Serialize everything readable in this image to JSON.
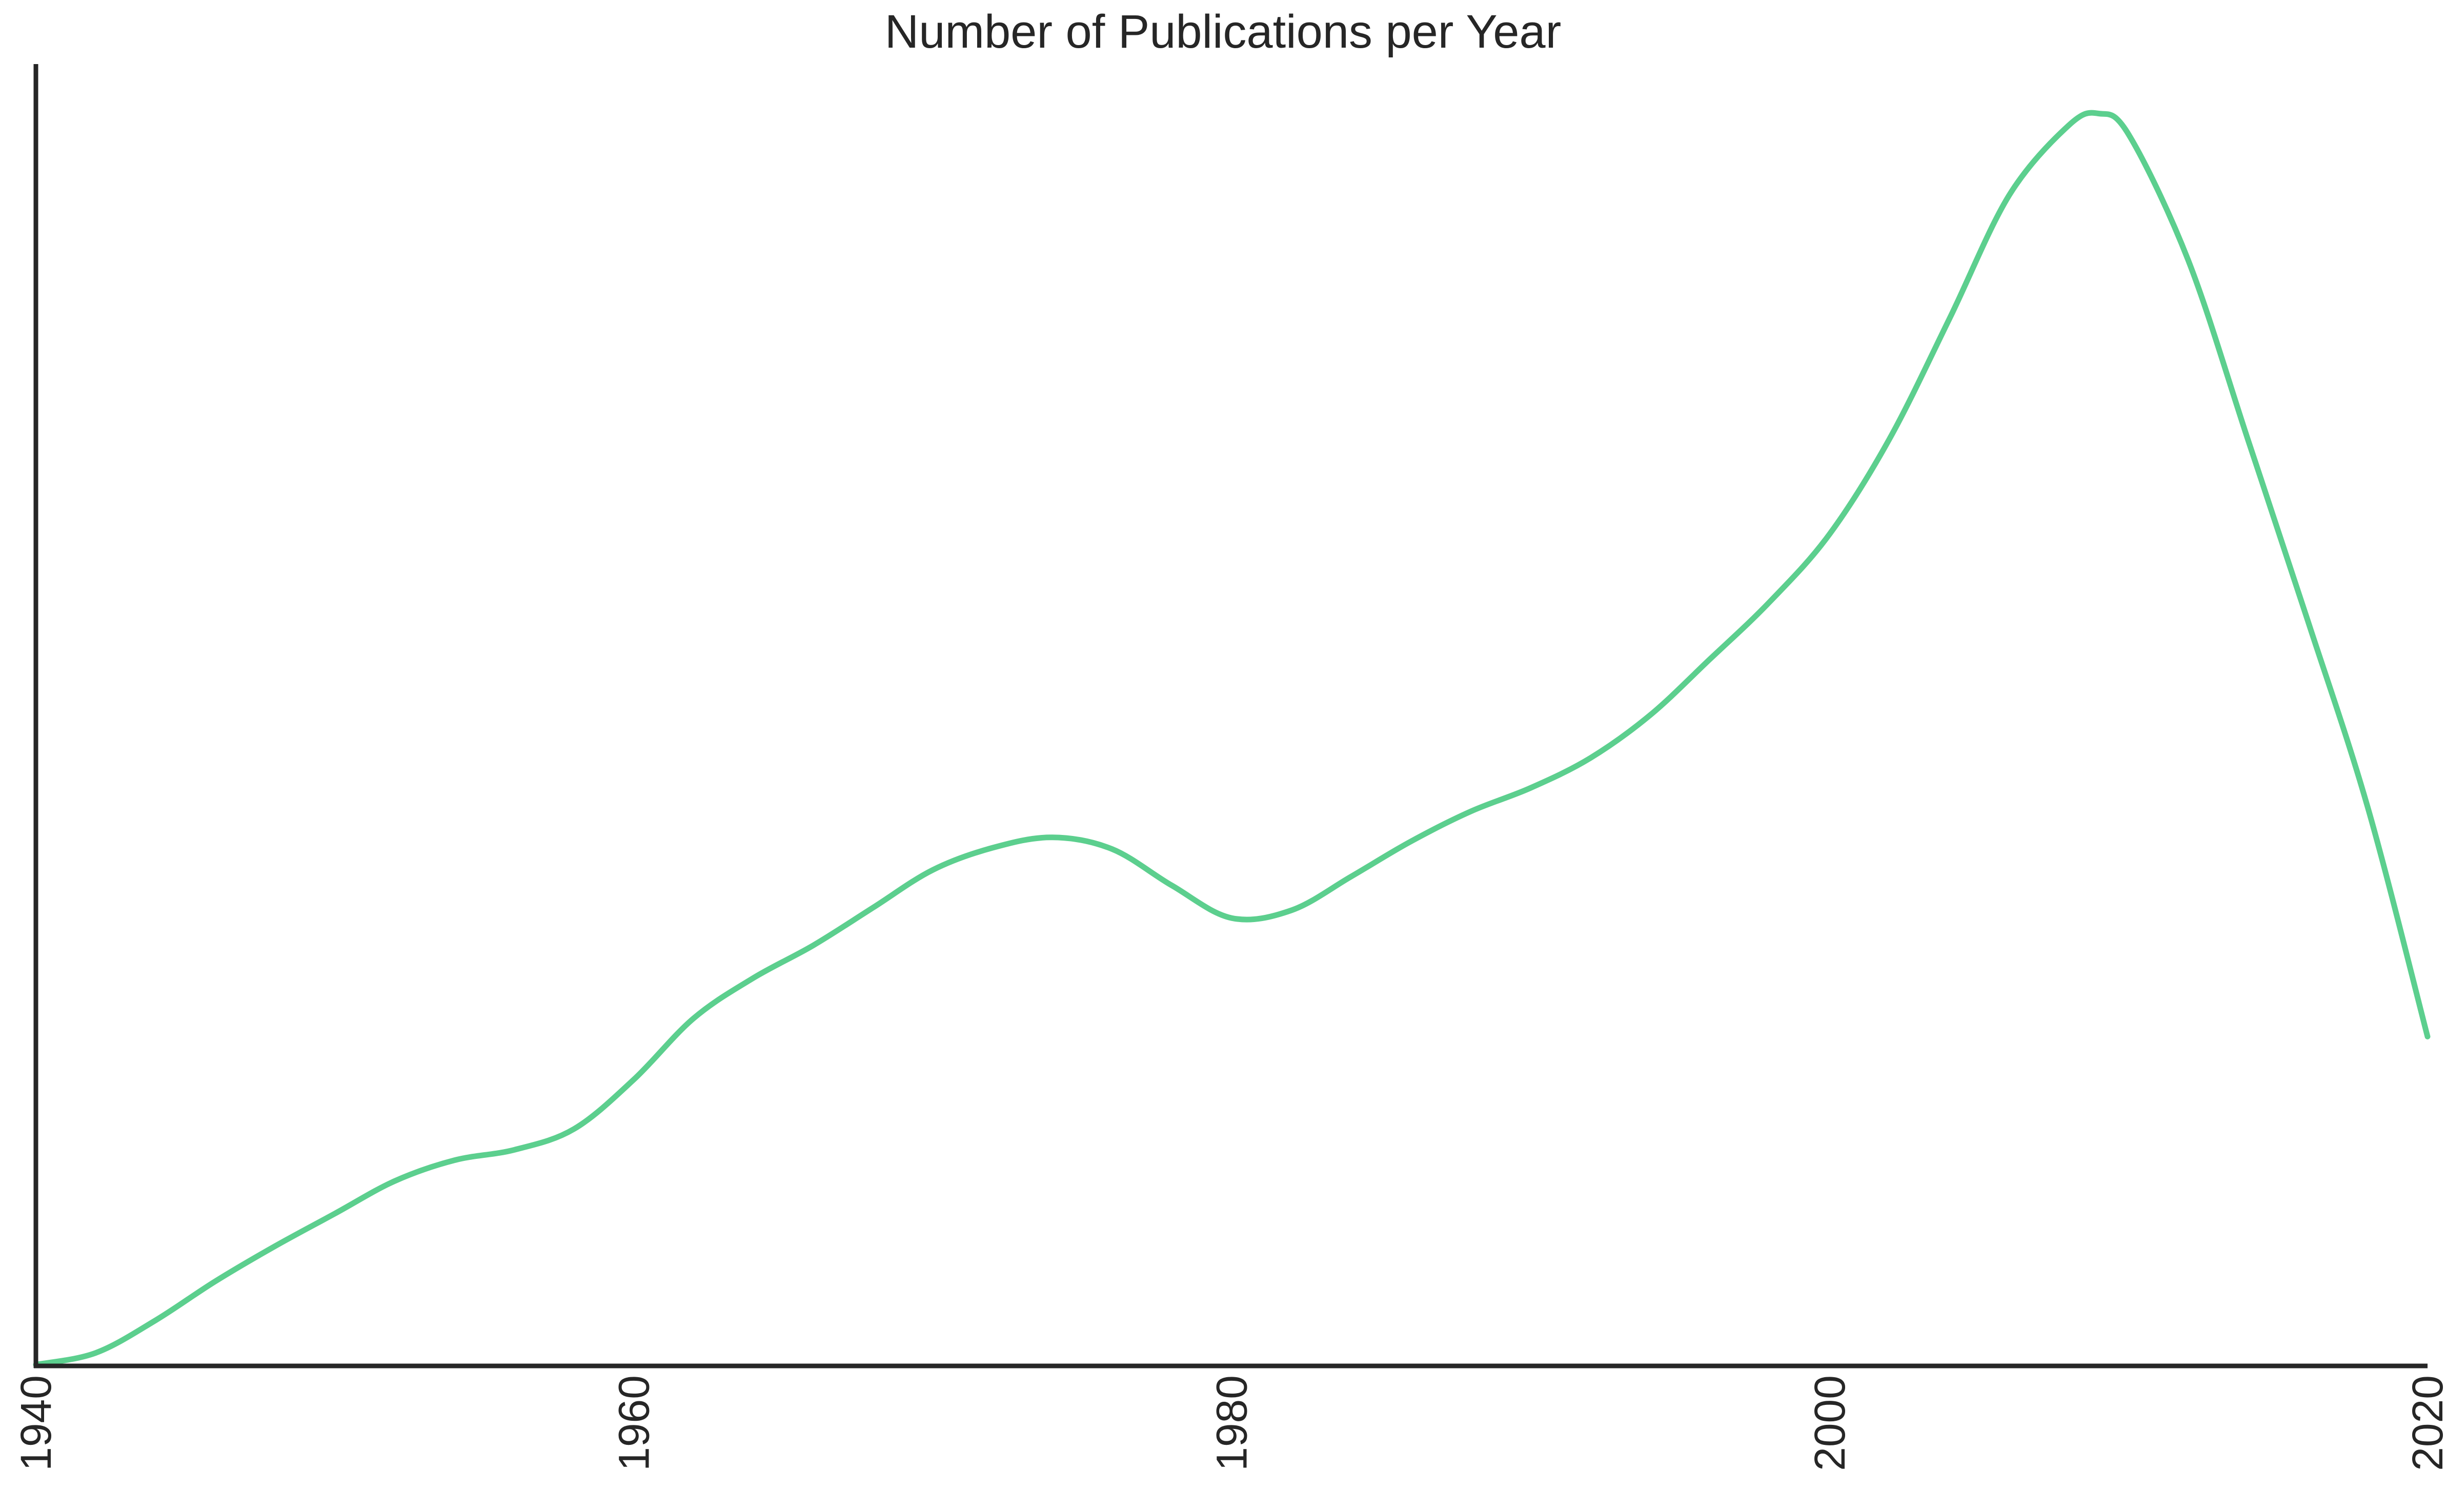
{
  "chart_data": {
    "type": "line",
    "title": "Number of Publications per Year",
    "xlabel": "",
    "ylabel": "",
    "xlim": [
      1940,
      2020
    ],
    "ylim": [
      0,
      1.0
    ],
    "x_ticks": [
      "1940",
      "1960",
      "1980",
      "2000",
      "2020"
    ],
    "y_ticks_shown": false,
    "grid": false,
    "line_color": "#5ccf8e",
    "axis_color": "#262626",
    "series": [
      {
        "x": [
          1940,
          1942,
          1944,
          1946,
          1948,
          1950,
          1952,
          1954,
          1956,
          1958,
          1960,
          1962,
          1964,
          1966,
          1968,
          1970,
          1972,
          1974,
          1976,
          1978,
          1980,
          1982,
          1984,
          1986,
          1988,
          1990,
          1992,
          1994,
          1996,
          1998,
          2000,
          2002,
          2004,
          2006,
          2008,
          2009,
          2010,
          2012,
          2014,
          2016,
          2018,
          2020
        ],
        "y": [
          0.001,
          0.01,
          0.035,
          0.065,
          0.092,
          0.117,
          0.142,
          0.158,
          0.166,
          0.182,
          0.22,
          0.267,
          0.298,
          0.323,
          0.352,
          0.381,
          0.398,
          0.406,
          0.397,
          0.369,
          0.344,
          0.35,
          0.376,
          0.403,
          0.426,
          0.444,
          0.467,
          0.5,
          0.543,
          0.587,
          0.639,
          0.712,
          0.804,
          0.899,
          0.953,
          0.962,
          0.946,
          0.849,
          0.711,
          0.572,
          0.429,
          0.253
        ]
      }
    ]
  }
}
